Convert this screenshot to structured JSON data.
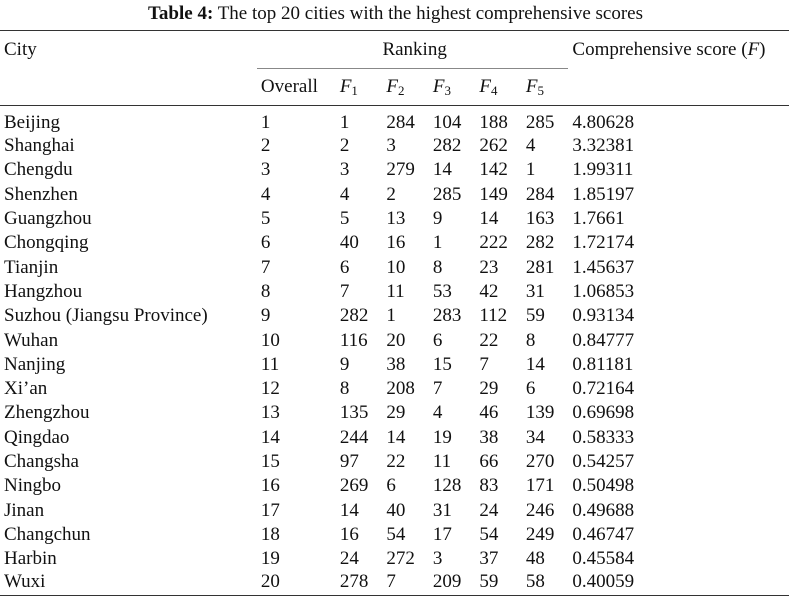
{
  "caption": {
    "label": "Table 4:",
    "text": "The top 20 cities with the highest comprehensive scores"
  },
  "header": {
    "city": "City",
    "ranking": "Ranking",
    "score": "Comprehensive score (",
    "score_var": "F",
    "score_close": ")",
    "overall": "Overall",
    "f_letter": "F",
    "f_subs": [
      "1",
      "2",
      "3",
      "4",
      "5"
    ]
  },
  "rows": [
    {
      "city": "Beijing",
      "overall": "1",
      "f1": "1",
      "f2": "284",
      "f3": "104",
      "f4": "188",
      "f5": "285",
      "score": "4.80628"
    },
    {
      "city": "Shanghai",
      "overall": "2",
      "f1": "2",
      "f2": "3",
      "f3": "282",
      "f4": "262",
      "f5": "4",
      "score": "3.32381"
    },
    {
      "city": "Chengdu",
      "overall": "3",
      "f1": "3",
      "f2": "279",
      "f3": "14",
      "f4": "142",
      "f5": "1",
      "score": "1.99311"
    },
    {
      "city": "Shenzhen",
      "overall": "4",
      "f1": "4",
      "f2": "2",
      "f3": "285",
      "f4": "149",
      "f5": "284",
      "score": "1.85197"
    },
    {
      "city": "Guangzhou",
      "overall": "5",
      "f1": "5",
      "f2": "13",
      "f3": "9",
      "f4": "14",
      "f5": "163",
      "score": "1.7661"
    },
    {
      "city": "Chongqing",
      "overall": "6",
      "f1": "40",
      "f2": "16",
      "f3": "1",
      "f4": "222",
      "f5": "282",
      "score": "1.72174"
    },
    {
      "city": "Tianjin",
      "overall": "7",
      "f1": "6",
      "f2": "10",
      "f3": "8",
      "f4": "23",
      "f5": "281",
      "score": "1.45637"
    },
    {
      "city": "Hangzhou",
      "overall": "8",
      "f1": "7",
      "f2": "11",
      "f3": "53",
      "f4": "42",
      "f5": "31",
      "score": "1.06853"
    },
    {
      "city": "Suzhou (Jiangsu Province)",
      "overall": "9",
      "f1": "282",
      "f2": "1",
      "f3": "283",
      "f4": "112",
      "f5": "59",
      "score": "0.93134"
    },
    {
      "city": "Wuhan",
      "overall": "10",
      "f1": "116",
      "f2": "20",
      "f3": "6",
      "f4": "22",
      "f5": "8",
      "score": "0.84777"
    },
    {
      "city": "Nanjing",
      "overall": "11",
      "f1": "9",
      "f2": "38",
      "f3": "15",
      "f4": "7",
      "f5": "14",
      "score": "0.81181"
    },
    {
      "city": "Xi’an",
      "overall": "12",
      "f1": "8",
      "f2": "208",
      "f3": "7",
      "f4": "29",
      "f5": "6",
      "score": "0.72164"
    },
    {
      "city": "Zhengzhou",
      "overall": "13",
      "f1": "135",
      "f2": "29",
      "f3": "4",
      "f4": "46",
      "f5": "139",
      "score": "0.69698"
    },
    {
      "city": "Qingdao",
      "overall": "14",
      "f1": "244",
      "f2": "14",
      "f3": "19",
      "f4": "38",
      "f5": "34",
      "score": "0.58333"
    },
    {
      "city": "Changsha",
      "overall": "15",
      "f1": "97",
      "f2": "22",
      "f3": "11",
      "f4": "66",
      "f5": "270",
      "score": "0.54257"
    },
    {
      "city": "Ningbo",
      "overall": "16",
      "f1": "269",
      "f2": "6",
      "f3": "128",
      "f4": "83",
      "f5": "171",
      "score": "0.50498"
    },
    {
      "city": "Jinan",
      "overall": "17",
      "f1": "14",
      "f2": "40",
      "f3": "31",
      "f4": "24",
      "f5": "246",
      "score": "0.49688"
    },
    {
      "city": "Changchun",
      "overall": "18",
      "f1": "16",
      "f2": "54",
      "f3": "17",
      "f4": "54",
      "f5": "249",
      "score": "0.46747"
    },
    {
      "city": "Harbin",
      "overall": "19",
      "f1": "24",
      "f2": "272",
      "f3": "3",
      "f4": "37",
      "f5": "48",
      "score": "0.45584"
    },
    {
      "city": "Wuxi",
      "overall": "20",
      "f1": "278",
      "f2": "7",
      "f3": "209",
      "f4": "59",
      "f5": "58",
      "score": "0.40059"
    }
  ]
}
